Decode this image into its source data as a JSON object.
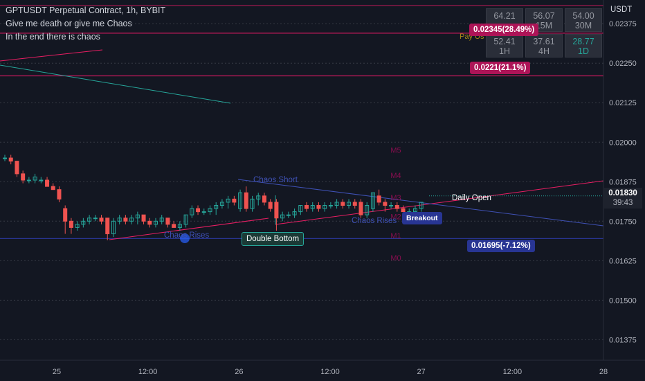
{
  "header": {
    "title": "GPTUSDT Perpetual Contract, 1h, BYBIT",
    "line2": "Give me death or give me Chaos",
    "line3": "In the end there is chaos"
  },
  "price_axis": {
    "currency": "USDT",
    "current_price": "0.01830",
    "countdown": "39:43"
  },
  "rsi_table": {
    "rows": [
      [
        {
          "value": "64.21",
          "label": ""
        },
        {
          "value": "56.07",
          "label": "15M"
        },
        {
          "value": "54.00",
          "label": "30M"
        }
      ],
      [
        {
          "value": "52.41",
          "label": "1H"
        },
        {
          "value": "37.61",
          "label": "4H"
        },
        {
          "value": "28.77",
          "label": "1D"
        }
      ]
    ],
    "pay_label": "Pay Us"
  },
  "badges": {
    "top": "0.02345(28.49%)",
    "upper": "0.0221(21.1%)",
    "lower": "0.01695(-7.12%)",
    "breakout": "Breakout",
    "double_bottom": "Double Bottom"
  },
  "labels": {
    "chaos_short": "Chaos Short",
    "chaos_rises_left": "Chaos Rises",
    "chaos_rises_right": "Chaos Rises",
    "daily_open": "Daily Open",
    "m_levels": [
      "M5",
      "M4",
      "M3",
      "M2",
      "M1",
      "M0"
    ]
  },
  "colors": {
    "background": "#131722",
    "up": "#26a69a",
    "down": "#ef5350",
    "magenta": "#c2185b",
    "navy": "#283593",
    "blue_line": "#3f51b5",
    "teal_line": "#26a69a",
    "m_level": "#880e4f"
  },
  "chart_data": {
    "type": "candlestick",
    "symbol": "GPTUSDT",
    "interval": "1h",
    "ylim": [
      0.0131,
      0.0245
    ],
    "y_ticks": [
      "0.02375",
      "0.02250",
      "0.02125",
      "0.02000",
      "0.01875",
      "0.01750",
      "0.01625",
      "0.01500",
      "0.01375"
    ],
    "x_ticks": [
      "25",
      "12:00",
      "26",
      "12:00",
      "27",
      "12:00",
      "28"
    ],
    "candles": [
      [
        0.0195,
        0.0196,
        0.0194,
        0.0195
      ],
      [
        0.0195,
        0.0196,
        0.0193,
        0.0194
      ],
      [
        0.0194,
        0.0194,
        0.0189,
        0.019
      ],
      [
        0.019,
        0.0191,
        0.0187,
        0.0188
      ],
      [
        0.0188,
        0.0189,
        0.0187,
        0.0188
      ],
      [
        0.0188,
        0.019,
        0.0187,
        0.0189
      ],
      [
        0.0188,
        0.0189,
        0.0187,
        0.0188
      ],
      [
        0.0188,
        0.0189,
        0.0186,
        0.0186
      ],
      [
        0.0186,
        0.0187,
        0.0185,
        0.0185
      ],
      [
        0.0185,
        0.0186,
        0.0181,
        0.0182
      ],
      [
        0.0179,
        0.018,
        0.0171,
        0.0175
      ],
      [
        0.0175,
        0.0176,
        0.0171,
        0.0173
      ],
      [
        0.0173,
        0.0175,
        0.0172,
        0.0174
      ],
      [
        0.0174,
        0.0176,
        0.0173,
        0.0175
      ],
      [
        0.0175,
        0.0177,
        0.0174,
        0.0176
      ],
      [
        0.0176,
        0.0177,
        0.0175,
        0.0176
      ],
      [
        0.0176,
        0.0177,
        0.0174,
        0.0175
      ],
      [
        0.0176,
        0.0176,
        0.0169,
        0.0171
      ],
      [
        0.0171,
        0.0176,
        0.017,
        0.0175
      ],
      [
        0.0175,
        0.0177,
        0.0174,
        0.0176
      ],
      [
        0.0176,
        0.0177,
        0.0174,
        0.0175
      ],
      [
        0.0175,
        0.0177,
        0.0174,
        0.0176
      ],
      [
        0.0176,
        0.0178,
        0.0174,
        0.0177
      ],
      [
        0.0177,
        0.0177,
        0.0174,
        0.0175
      ],
      [
        0.0175,
        0.0176,
        0.0173,
        0.0174
      ],
      [
        0.0174,
        0.0176,
        0.0173,
        0.0175
      ],
      [
        0.0175,
        0.0177,
        0.0174,
        0.0176
      ],
      [
        0.0176,
        0.0176,
        0.0173,
        0.0174
      ],
      [
        0.0174,
        0.0175,
        0.0173,
        0.0173
      ],
      [
        0.0173,
        0.0175,
        0.0172,
        0.0174
      ],
      [
        0.0174,
        0.0177,
        0.0173,
        0.0177
      ],
      [
        0.0177,
        0.018,
        0.0176,
        0.0179
      ],
      [
        0.0179,
        0.018,
        0.0177,
        0.0178
      ],
      [
        0.0178,
        0.0179,
        0.0177,
        0.0178
      ],
      [
        0.0178,
        0.018,
        0.0177,
        0.0179
      ],
      [
        0.0179,
        0.0181,
        0.0177,
        0.018
      ],
      [
        0.018,
        0.0182,
        0.0179,
        0.0181
      ],
      [
        0.0181,
        0.0183,
        0.0179,
        0.0182
      ],
      [
        0.0182,
        0.0183,
        0.018,
        0.0181
      ],
      [
        0.0179,
        0.0185,
        0.0178,
        0.0184
      ],
      [
        0.0184,
        0.0186,
        0.0178,
        0.0179
      ],
      [
        0.0179,
        0.0183,
        0.0178,
        0.0182
      ],
      [
        0.0182,
        0.0184,
        0.018,
        0.0183
      ],
      [
        0.0183,
        0.0184,
        0.018,
        0.0181
      ],
      [
        0.0181,
        0.0182,
        0.0178,
        0.0179
      ],
      [
        0.0181,
        0.0182,
        0.0172,
        0.0176
      ],
      [
        0.0176,
        0.0178,
        0.0175,
        0.0177
      ],
      [
        0.0177,
        0.0178,
        0.0176,
        0.0177
      ],
      [
        0.0177,
        0.0179,
        0.0176,
        0.0178
      ],
      [
        0.0178,
        0.018,
        0.0177,
        0.018
      ],
      [
        0.018,
        0.0181,
        0.0178,
        0.0179
      ],
      [
        0.0179,
        0.0181,
        0.0178,
        0.018
      ],
      [
        0.018,
        0.0181,
        0.0178,
        0.0179
      ],
      [
        0.0179,
        0.0181,
        0.0178,
        0.018
      ],
      [
        0.018,
        0.0181,
        0.0179,
        0.018
      ],
      [
        0.018,
        0.0182,
        0.0179,
        0.0181
      ],
      [
        0.0181,
        0.0182,
        0.0179,
        0.018
      ],
      [
        0.018,
        0.0182,
        0.0179,
        0.0181
      ],
      [
        0.0181,
        0.0182,
        0.0179,
        0.018
      ],
      [
        0.0181,
        0.0182,
        0.0176,
        0.0177
      ],
      [
        0.0177,
        0.0181,
        0.0176,
        0.018
      ],
      [
        0.0179,
        0.0184,
        0.0178,
        0.0184
      ],
      [
        0.0183,
        0.0185,
        0.018,
        0.0181
      ],
      [
        0.0181,
        0.0182,
        0.0178,
        0.018
      ],
      [
        0.018,
        0.0181,
        0.0179,
        0.018
      ],
      [
        0.018,
        0.0181,
        0.0178,
        0.0179
      ],
      [
        0.0179,
        0.018,
        0.0178,
        0.0178
      ],
      [
        0.0178,
        0.0179,
        0.0177,
        0.0178
      ],
      [
        0.0178,
        0.018,
        0.0177,
        0.0179
      ],
      [
        0.0179,
        0.0181,
        0.0178,
        0.0181
      ]
    ],
    "horizontal_lines": [
      0.02345,
      0.0221,
      0.01695
    ],
    "m_levels": [
      {
        "name": "M5",
        "value": 0.01975
      },
      {
        "name": "M4",
        "value": 0.01895
      },
      {
        "name": "M3",
        "value": 0.01825
      },
      {
        "name": "M2",
        "value": 0.01765
      },
      {
        "name": "M1",
        "value": 0.01705
      },
      {
        "name": "M0",
        "value": 0.01635
      }
    ]
  }
}
